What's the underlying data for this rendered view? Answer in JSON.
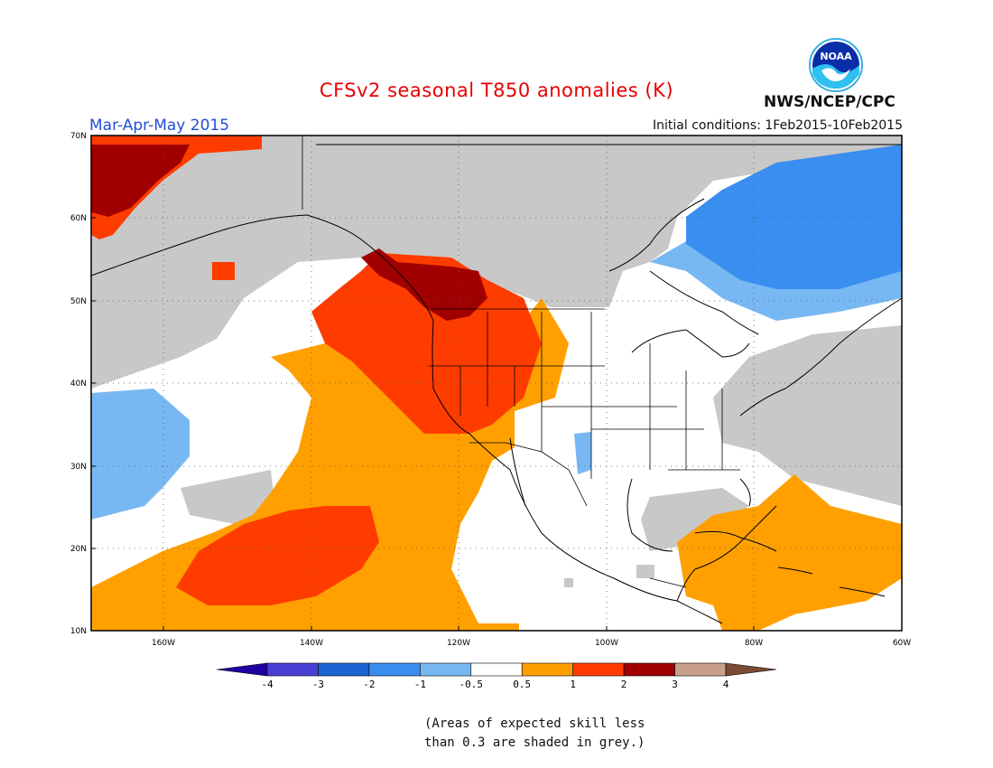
{
  "title": "CFSv2 seasonal T850 anomalies (K)",
  "period": "Mar-Apr-May 2015",
  "initial_conditions": "Initial conditions: 1Feb2015-10Feb2015",
  "agency": "NWS/NCEP/CPC",
  "logo_text": "NOAA",
  "skill_note_line1": "(Areas of expected skill less",
  "skill_note_line2": "than 0.3 are shaded in grey.)",
  "lat_labels": [
    "70N",
    "60N",
    "50N",
    "40N",
    "30N",
    "20N",
    "10N"
  ],
  "lon_labels": [
    "160W",
    "140W",
    "120W",
    "100W",
    "80W",
    "60W"
  ],
  "legend": {
    "ticks": [
      "-4",
      "-3",
      "-2",
      "-1",
      "-0.5",
      "0.5",
      "1",
      "2",
      "3",
      "4"
    ],
    "colors": [
      "#2000a0",
      "#4a3fd4",
      "#1c64d2",
      "#3a8ef0",
      "#78b8f2",
      "#ffffff",
      "#ffa000",
      "#ff3c00",
      "#a00000",
      "#c8a08c",
      "#7a4a32"
    ]
  },
  "colors": {
    "grey": "#c8c8c8",
    "lightblue": "#78b8f2",
    "blue": "#3a8ef0",
    "orange": "#ffa000",
    "red": "#ff3c00",
    "darkred": "#a00000"
  }
}
